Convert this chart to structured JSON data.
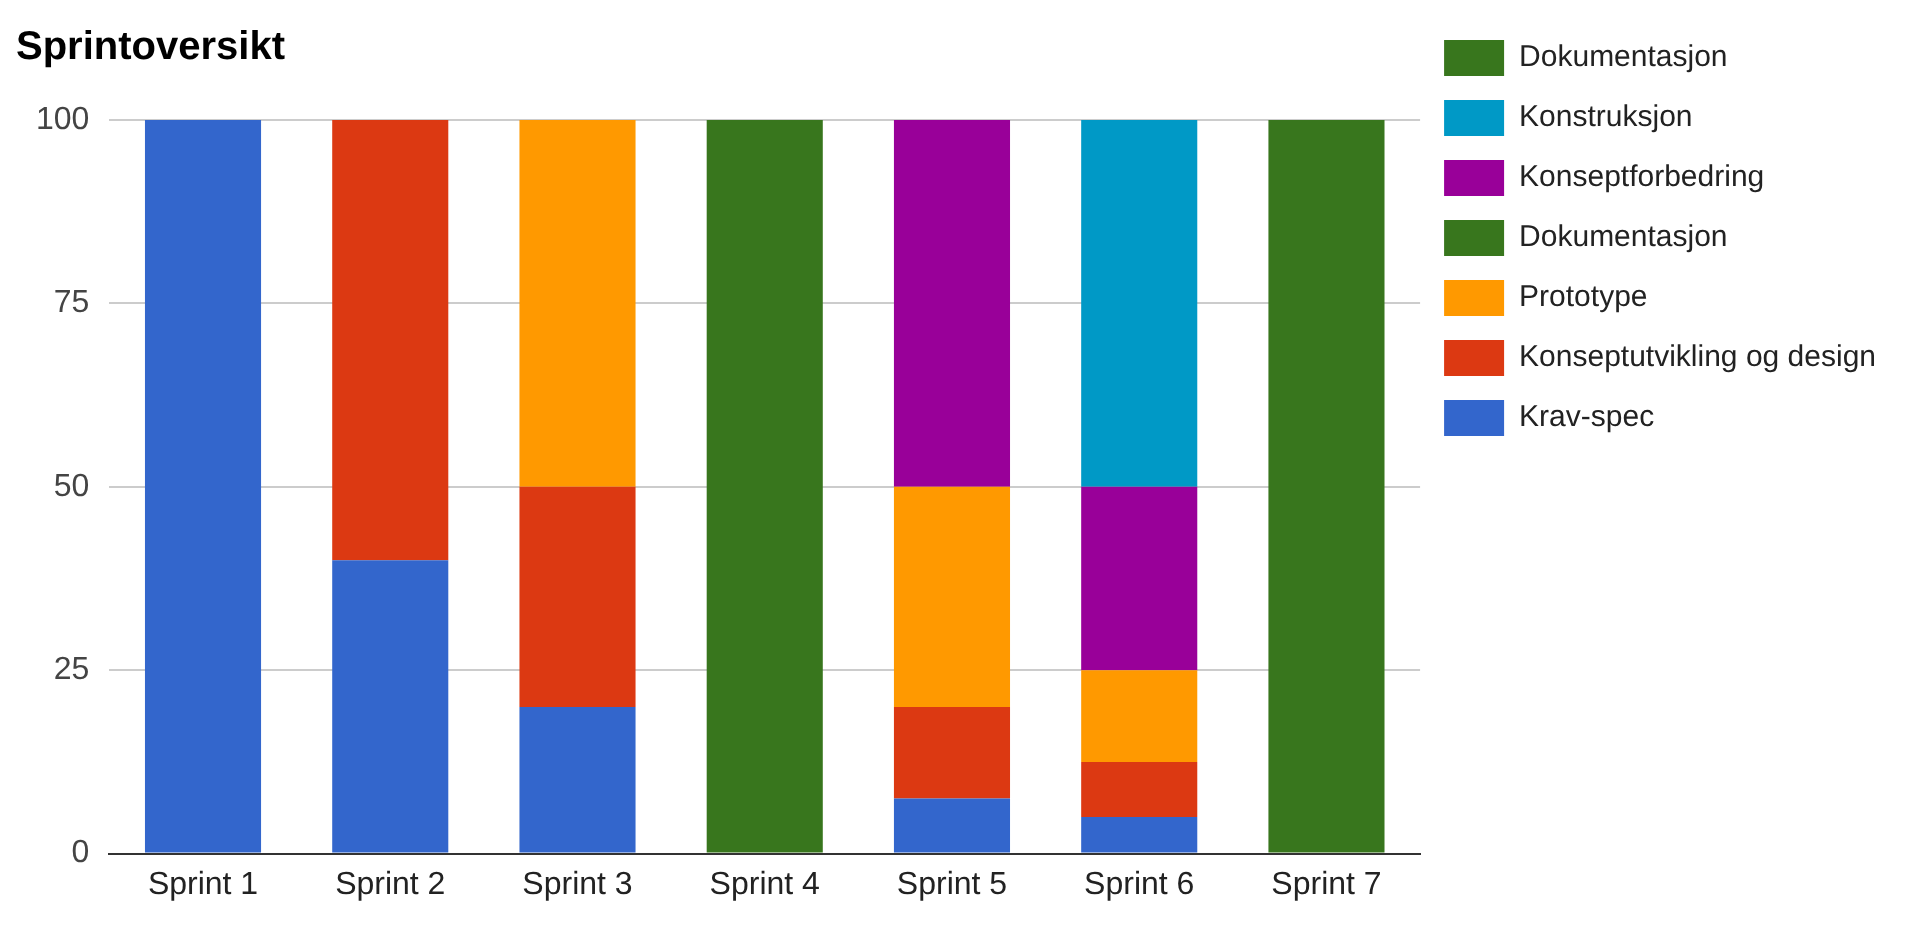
{
  "chart_data": {
    "type": "bar",
    "title": "Sprintoversikt",
    "stacked": true,
    "categories": [
      "Sprint 1",
      "Sprint 2",
      "Sprint 3",
      "Sprint 4",
      "Sprint 5",
      "Sprint 6",
      "Sprint 7"
    ],
    "series": [
      {
        "name": "Krav-spec",
        "color": "#3366cc",
        "values": [
          100,
          40,
          20,
          0,
          7.5,
          5,
          0
        ]
      },
      {
        "name": "Konseptutvikling og design",
        "color": "#dc3912",
        "values": [
          0,
          60,
          30,
          0,
          12.5,
          7.5,
          0
        ]
      },
      {
        "name": "Prototype",
        "color": "#ff9900",
        "values": [
          0,
          0,
          50,
          0,
          30,
          12.5,
          0
        ]
      },
      {
        "name": "Dokumentasjon",
        "color": "#38761d",
        "values": [
          0,
          0,
          0,
          100,
          0,
          0,
          0
        ]
      },
      {
        "name": "Konseptforbedring",
        "color": "#990099",
        "values": [
          0,
          0,
          0,
          0,
          50,
          25,
          0
        ]
      },
      {
        "name": "Konstruksjon",
        "color": "#0099c6",
        "values": [
          0,
          0,
          0,
          0,
          0,
          50,
          0
        ]
      },
      {
        "name": "Dokumentasjon",
        "color": "#38761d",
        "values": [
          0,
          0,
          0,
          0,
          0,
          0,
          100
        ]
      }
    ],
    "ylim": [
      0,
      100
    ],
    "yticks": [
      0,
      25,
      50,
      75,
      100
    ],
    "grid": "y",
    "legend": "right"
  }
}
